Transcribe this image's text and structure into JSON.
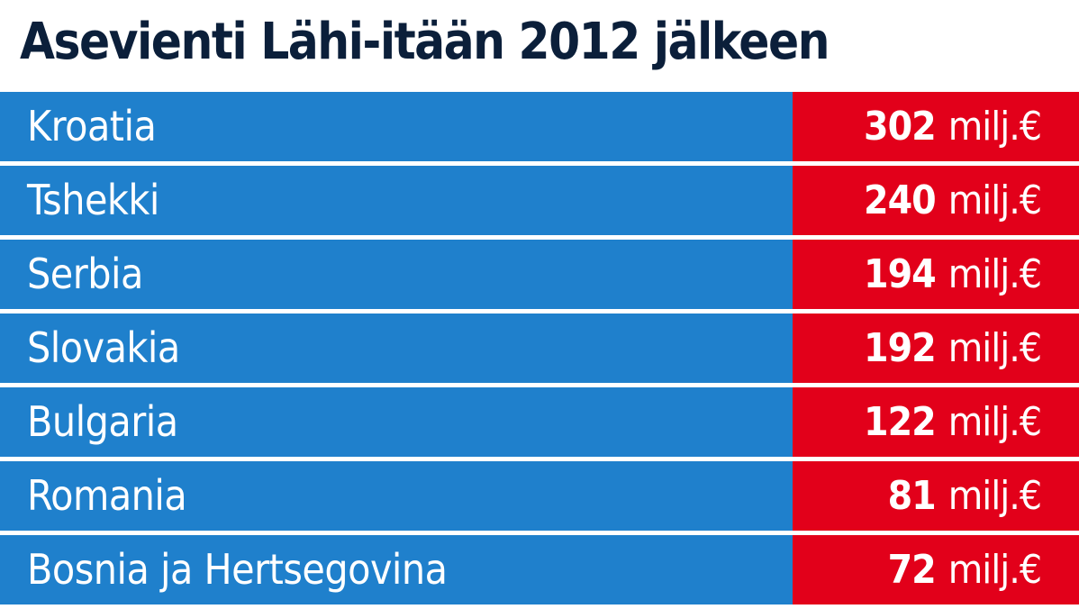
{
  "header": {
    "title": "Asevienti Lähi-itään 2012 jälkeen"
  },
  "table": {
    "unit": "milj.€",
    "rows": [
      {
        "country": "Kroatia",
        "amount": 302
      },
      {
        "country": "Tshekki",
        "amount": 240
      },
      {
        "country": "Serbia",
        "amount": 194
      },
      {
        "country": "Slovakia",
        "amount": 192
      },
      {
        "country": "Bulgaria",
        "amount": 122
      },
      {
        "country": "Romania",
        "amount": 81
      },
      {
        "country": "Bosnia ja Hertsegovina",
        "amount": 72
      }
    ]
  }
}
